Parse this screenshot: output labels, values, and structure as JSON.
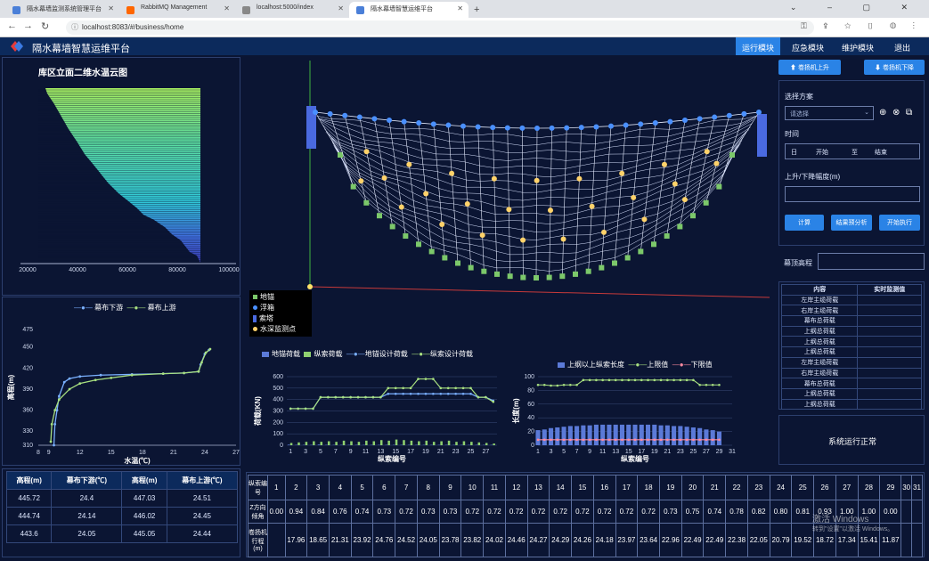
{
  "browser": {
    "tabs": [
      {
        "label": "隔水幕墙监测系统管理平台",
        "active": false
      },
      {
        "label": "RabbitMQ Management",
        "active": false
      },
      {
        "label": "localhost:5000/index",
        "active": false
      },
      {
        "label": "隔水幕墙智慧运维平台",
        "active": true
      }
    ],
    "url": "localhost:8083/#/business/home"
  },
  "app": {
    "title": "隔水幕墙智慧运维平台",
    "menu": [
      "运行模块",
      "应急模块",
      "维护模块",
      "退出"
    ],
    "active_menu": 0,
    "accent": "#2a83e6"
  },
  "cloud_panel": {
    "title": "库区立面二维水温云图",
    "x_ticks": [
      "20000",
      "40000",
      "60000",
      "80000",
      "100000"
    ]
  },
  "temp_profile": {
    "legend": [
      "幕布下游",
      "幕布上游"
    ],
    "xlabel": "水温(℃)",
    "ylabel": "高程(m)",
    "y_ticks": [
      "475",
      "450",
      "420",
      "390",
      "360",
      "330",
      "310"
    ],
    "x_ticks": [
      "8",
      "9",
      "12",
      "15",
      "18",
      "21",
      "24",
      "27"
    ]
  },
  "left_table": {
    "headers": [
      "高程(m)",
      "幕布下游(℃)",
      "高程(m)",
      "幕布上游(℃)"
    ],
    "rows": [
      [
        "445.72",
        "24.4",
        "447.03",
        "24.51"
      ],
      [
        "444.74",
        "24.14",
        "446.02",
        "24.45"
      ],
      [
        "443.6",
        "24.05",
        "445.05",
        "24.44"
      ]
    ]
  },
  "diagram": {
    "legend": [
      "地锚",
      "浮箱",
      "索塔",
      "水深监测点"
    ]
  },
  "load_chart": {
    "legend": [
      "地锚荷载",
      "纵索荷载",
      "地锚设计荷载",
      "纵索设计荷载"
    ],
    "ylabel": "荷载(KN)",
    "xlabel": "纵索编号",
    "y_ticks": [
      "600",
      "500",
      "400",
      "300",
      "200",
      "100",
      "0"
    ],
    "x_ticks": [
      "1",
      "3",
      "5",
      "7",
      "9",
      "11",
      "13",
      "15",
      "17",
      "19",
      "21",
      "23",
      "25",
      "27"
    ]
  },
  "length_chart": {
    "legend": [
      "上纲以上纵索长度",
      "上限值",
      "下限值"
    ],
    "ylabel": "长度(m)",
    "xlabel": "纵索编号",
    "y_ticks": [
      "100",
      "80",
      "60",
      "40",
      "20",
      "0"
    ],
    "x_ticks": [
      "1",
      "3",
      "5",
      "7",
      "9",
      "11",
      "13",
      "15",
      "17",
      "19",
      "21",
      "23",
      "25",
      "27",
      "29",
      "31"
    ]
  },
  "control": {
    "btn_up": "卷扬机上升",
    "btn_down": "卷扬机下降",
    "plan_label": "选择方案",
    "plan_placeholder": "请选择",
    "time_label": "时间",
    "time_start_prefix": "日",
    "time_start": "开始",
    "time_sep": "至",
    "time_end": "结束",
    "speed_label": "上升/下降幅度(m)",
    "btn_calc": "计算",
    "btn_analyze": "结果预分析",
    "btn_execute": "开始执行",
    "current_label": "幕顶高程"
  },
  "monitor_table": {
    "headers": [
      "内容",
      "实时监测值"
    ],
    "rows": [
      "左岸主缆荷载",
      "右岸主缆荷载",
      "幕布总荷载",
      "上纲总荷载",
      "上纲总荷载",
      "上纲总荷载",
      "左岸主缆荷载",
      "右岸主缆荷载",
      "幕布总荷载",
      "上纲总荷载",
      "上纲总荷载"
    ]
  },
  "status": {
    "text": "系统运行正常"
  },
  "bottom_table": {
    "row_labels": [
      "纵索编号",
      "Z方向倾角",
      "卷扬机行程(m)"
    ],
    "ids": [
      "1",
      "2",
      "3",
      "4",
      "5",
      "6",
      "7",
      "8",
      "9",
      "10",
      "11",
      "12",
      "13",
      "14",
      "15",
      "16",
      "17",
      "18",
      "19",
      "20",
      "21",
      "22",
      "23",
      "24",
      "25",
      "26",
      "27",
      "28",
      "29",
      "30",
      "31"
    ],
    "angle": [
      "0.00",
      "0.94",
      "0.84",
      "0.76",
      "0.74",
      "0.73",
      "0.72",
      "0.73",
      "0.73",
      "0.72",
      "0.72",
      "0.72",
      "0.72",
      "0.72",
      "0.72",
      "0.72",
      "0.72",
      "0.72",
      "0.73",
      "0.75",
      "0.74",
      "0.78",
      "0.82",
      "0.80",
      "0.81",
      "0.93",
      "1.00",
      "1.00",
      "0.00",
      "",
      ""
    ],
    "stroke": [
      "",
      "17.96",
      "18.65",
      "21.31",
      "23.92",
      "24.76",
      "24.52",
      "24.05",
      "23.78",
      "23.82",
      "24.02",
      "24.46",
      "24.27",
      "24.29",
      "24.26",
      "24.18",
      "23.97",
      "23.64",
      "22.96",
      "22.49",
      "22.49",
      "22.38",
      "22.05",
      "20.79",
      "19.52",
      "18.72",
      "17.34",
      "15.41",
      "11.87",
      "",
      ""
    ]
  },
  "watermark": {
    "line1": "激活 Windows",
    "line2": "转到\"设置\"以激活 Windows。"
  },
  "chart_data": [
    {
      "type": "bar",
      "title": "库区立面二维水温云图",
      "x_range": [
        0,
        100000
      ],
      "xlabel": "",
      "ylabel": ""
    },
    {
      "type": "line",
      "title": "",
      "xlabel": "水温(℃)",
      "ylabel": "高程(m)",
      "xlim": [
        8,
        27
      ],
      "ylim": [
        310,
        475
      ],
      "series": [
        {
          "name": "幕布下游",
          "x": [
            9.5,
            9.6,
            9.8,
            10.0,
            10.5,
            11,
            12,
            14,
            17,
            20,
            22,
            23.4,
            23.6,
            24.0,
            24.4
          ],
          "y": [
            310,
            340,
            360,
            380,
            400,
            405,
            408,
            410,
            411,
            412,
            413,
            415,
            425,
            440,
            445.72
          ]
        },
        {
          "name": "幕布上游",
          "x": [
            9.2,
            9.3,
            9.6,
            10,
            11,
            12,
            13.5,
            15,
            17,
            20,
            22,
            23.4,
            23.7,
            24.1,
            24.51
          ],
          "y": [
            315,
            340,
            360,
            375,
            390,
            398,
            403,
            406,
            410,
            412,
            413,
            415,
            428,
            442,
            447.03
          ]
        }
      ]
    },
    {
      "type": "bar",
      "title": "",
      "xlabel": "纵索编号",
      "ylabel": "荷载(KN)",
      "ylim": [
        0,
        600
      ],
      "categories": [
        1,
        2,
        3,
        4,
        5,
        6,
        7,
        8,
        9,
        10,
        11,
        12,
        13,
        14,
        15,
        16,
        17,
        18,
        19,
        20,
        21,
        22,
        23,
        24,
        25,
        26,
        27,
        28
      ],
      "series": [
        {
          "name": "地锚荷载",
          "type": "bar",
          "values": [
            5,
            3,
            3,
            3,
            6,
            3,
            3,
            3,
            3,
            3,
            3,
            3,
            3,
            3,
            3,
            3,
            3,
            3,
            3,
            3,
            3,
            3,
            3,
            3,
            3,
            3,
            3,
            3
          ]
        },
        {
          "name": "纵索荷载",
          "type": "bar",
          "values": [
            20,
            25,
            30,
            35,
            30,
            35,
            30,
            40,
            35,
            30,
            40,
            35,
            45,
            40,
            50,
            45,
            40,
            35,
            40,
            30,
            35,
            40,
            30,
            35,
            30,
            25,
            20,
            15
          ]
        },
        {
          "name": "地锚设计荷载",
          "type": "line",
          "values": [
            320,
            320,
            320,
            320,
            420,
            420,
            420,
            420,
            420,
            420,
            420,
            420,
            420,
            450,
            450,
            450,
            450,
            450,
            450,
            450,
            450,
            450,
            450,
            450,
            450,
            420,
            420,
            390
          ]
        },
        {
          "name": "纵索设计荷载",
          "type": "line",
          "values": [
            320,
            320,
            320,
            320,
            420,
            420,
            420,
            420,
            420,
            420,
            420,
            420,
            420,
            500,
            500,
            500,
            500,
            580,
            580,
            580,
            500,
            500,
            500,
            500,
            500,
            420,
            420,
            380
          ]
        }
      ]
    },
    {
      "type": "bar",
      "title": "",
      "xlabel": "纵索编号",
      "ylabel": "长度(m)",
      "ylim": [
        0,
        100
      ],
      "categories": [
        1,
        2,
        3,
        4,
        5,
        6,
        7,
        8,
        9,
        10,
        11,
        12,
        13,
        14,
        15,
        16,
        17,
        18,
        19,
        20,
        21,
        22,
        23,
        24,
        25,
        26,
        27,
        28,
        29
      ],
      "series": [
        {
          "name": "上纲以上纵索长度",
          "type": "bar",
          "values": [
            22,
            23,
            25,
            26,
            27,
            28,
            28,
            29,
            29,
            30,
            30,
            30,
            30,
            30,
            30,
            30,
            30,
            30,
            30,
            29,
            29,
            28,
            28,
            27,
            26,
            25,
            23,
            22,
            20
          ]
        },
        {
          "name": "上限值",
          "type": "line",
          "values": [
            88,
            88,
            87,
            87,
            88,
            88,
            88,
            95,
            95,
            95,
            95,
            95,
            95,
            95,
            95,
            95,
            95,
            95,
            95,
            95,
            95,
            95,
            95,
            95,
            95,
            88,
            88,
            88,
            88
          ]
        },
        {
          "name": "下限值",
          "type": "line",
          "values": [
            8,
            8,
            8,
            8,
            8,
            8,
            8,
            8,
            8,
            8,
            8,
            8,
            8,
            8,
            8,
            8,
            8,
            8,
            8,
            8,
            8,
            8,
            8,
            8,
            8,
            8,
            8,
            8,
            8
          ]
        }
      ]
    }
  ]
}
